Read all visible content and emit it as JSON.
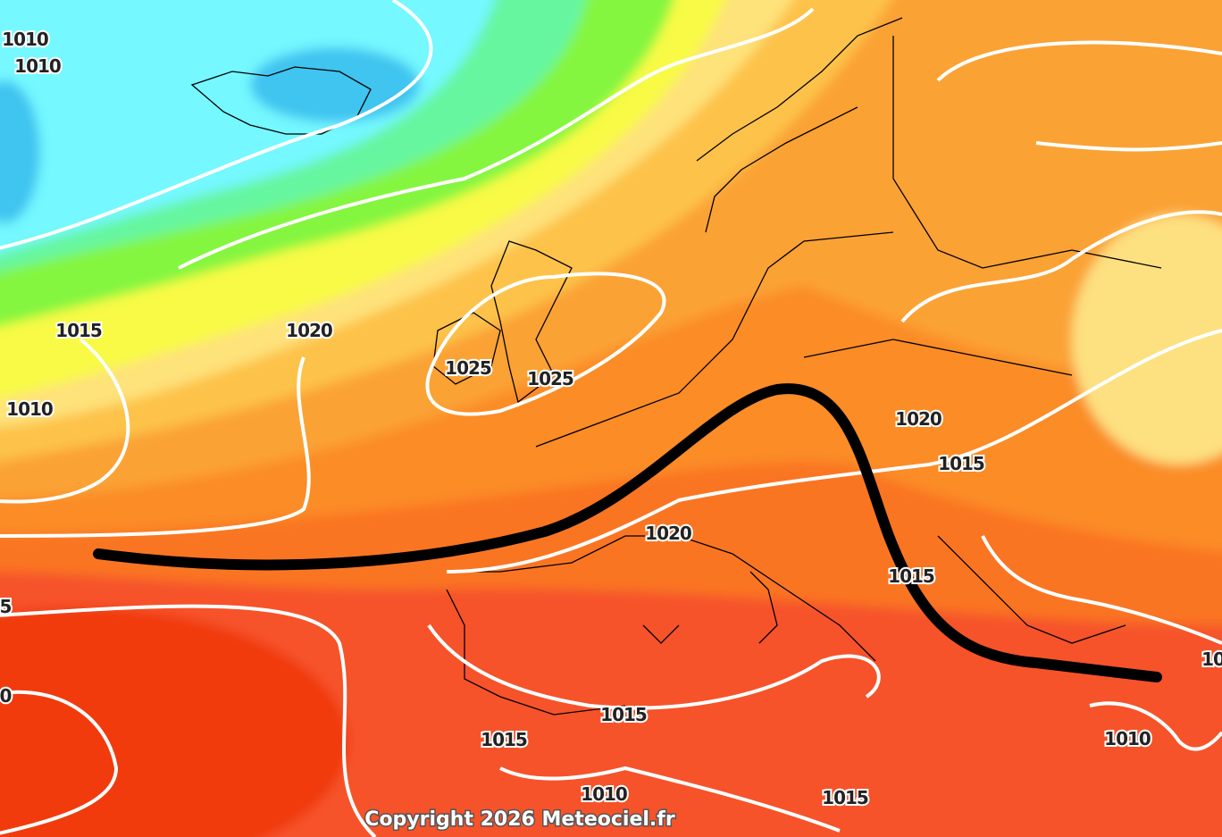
{
  "isobar_labels": [
    "1010",
    "1010",
    "1015",
    "1020",
    "1025",
    "1025",
    "1010",
    "1020",
    "1015",
    "1020",
    "1015",
    "5",
    "0",
    "10",
    "1015",
    "1015",
    "1010",
    "1010",
    "1015"
  ],
  "copyright": "Copyright 2026 Meteociel.fr"
}
